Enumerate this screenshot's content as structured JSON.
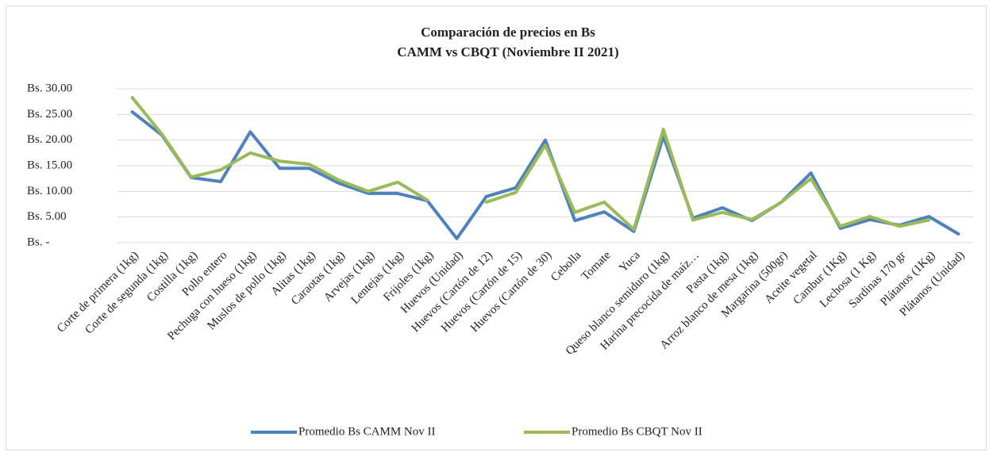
{
  "chart_data": {
    "type": "line",
    "title": "Comparación de precios en Bs",
    "subtitle": "CAMM vs CBQT (Noviembre II 2021)",
    "categories": [
      "Corte de primera (1kg)",
      "Corte de segunda (1kg)",
      "Costilla (1kg)",
      "Pollo entero",
      "Pechuga con hueso (1kg)",
      "Muslos de pollo (1kg)",
      "Alitas (1kg)",
      "Caraotas (1kg)",
      "Arvejas (1kg)",
      "Lentejas (1kg)",
      "Frijoles (1kg)",
      "Huevos (Unidad)",
      "Huevos (Cartón de 12)",
      "Huevos (Cartón de 15)",
      "Huevos (Cartón de 30)",
      "Cebolla",
      "Tomate",
      "Yuca",
      "Queso blanco semiduro (1kg)",
      "Harina precocida de maíz…",
      "Pasta (1kg)",
      "Arroz blanco de mesa (1kg)",
      "Margarina (500gr)",
      "Aceite vegetal",
      "Cambur (1Kg)",
      "Lechosa (1 Kg)",
      "Sardinas 170 gr",
      "Plátanos (1Kg)",
      "Plátanos (Unidad)"
    ],
    "series": [
      {
        "name": "Promedio Bs CAMM Nov II",
        "color": "#4f81bd",
        "values": [
          25.5,
          21,
          12.7,
          11.9,
          21.6,
          14.5,
          14.5,
          11.6,
          9.6,
          9.6,
          8.2,
          0.8,
          9,
          10.7,
          20,
          4.3,
          6,
          2.2,
          20.7,
          4.8,
          6.8,
          4.3,
          7.9,
          13.6,
          2.8,
          4.5,
          3.4,
          5.1,
          1.7
        ]
      },
      {
        "name": "Promedio Bs CBQT Nov II",
        "color": "#9bbb59",
        "values": [
          28.3,
          21.2,
          12.8,
          14.2,
          17.5,
          15.9,
          15.3,
          12.2,
          10,
          11.8,
          8.3,
          null,
          7.9,
          9.8,
          19,
          5.9,
          7.9,
          2.6,
          22.1,
          4.4,
          5.9,
          4.5,
          7.9,
          12.5,
          3.2,
          5.1,
          3.2,
          4.4,
          null
        ]
      }
    ],
    "ylim": [
      0,
      30
    ],
    "yticks": [
      {
        "value": 0,
        "label": "Bs. -"
      },
      {
        "value": 5,
        "label": "Bs. 5.00"
      },
      {
        "value": 10,
        "label": "Bs. 10.00"
      },
      {
        "value": 15,
        "label": "Bs. 15.00"
      },
      {
        "value": 20,
        "label": "Bs. 20.00"
      },
      {
        "value": 25,
        "label": "Bs. 25.00"
      },
      {
        "value": 30,
        "label": "Bs. 30.00"
      }
    ],
    "grid": true,
    "legend": "bottom"
  }
}
